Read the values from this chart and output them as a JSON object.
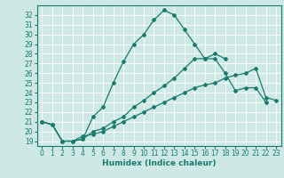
{
  "xlabel": "Humidex (Indice chaleur)",
  "background_color": "#cde8e5",
  "grid_color": "#ffffff",
  "line_color": "#1a7a6e",
  "xlim": [
    -0.5,
    23.5
  ],
  "ylim": [
    18.5,
    33.0
  ],
  "xticks": [
    0,
    1,
    2,
    3,
    4,
    5,
    6,
    7,
    8,
    9,
    10,
    11,
    12,
    13,
    14,
    15,
    16,
    17,
    18,
    19,
    20,
    21,
    22,
    23
  ],
  "yticks": [
    19,
    20,
    21,
    22,
    23,
    24,
    25,
    26,
    27,
    28,
    29,
    30,
    31,
    32
  ],
  "line1_x": [
    0,
    1,
    2,
    3,
    4,
    5,
    6,
    7,
    8,
    9,
    10,
    11,
    12,
    13,
    14,
    15,
    16,
    17,
    18
  ],
  "line1_y": [
    21.0,
    20.7,
    19.0,
    19.0,
    19.2,
    21.5,
    22.5,
    25.0,
    27.2,
    29.0,
    30.0,
    31.5,
    32.5,
    32.0,
    30.5,
    29.0,
    27.5,
    28.0,
    27.5
  ],
  "line2_x": [
    0,
    1,
    2,
    3,
    4,
    5,
    6,
    7,
    8,
    9,
    10,
    11,
    12,
    13,
    14,
    15,
    16,
    17,
    18,
    19,
    20,
    21,
    22
  ],
  "line2_y": [
    21.0,
    20.7,
    19.0,
    19.0,
    19.2,
    20.0,
    20.3,
    21.0,
    21.5,
    22.5,
    23.2,
    24.0,
    24.7,
    25.5,
    26.5,
    27.5,
    27.5,
    27.5,
    26.0,
    24.2,
    24.5,
    24.5,
    23.0
  ],
  "line3_x": [
    0,
    1,
    2,
    3,
    4,
    5,
    6,
    7,
    8,
    9,
    10,
    11,
    12,
    13,
    14,
    15,
    16,
    17,
    18,
    19,
    20,
    21,
    22,
    23
  ],
  "line3_y": [
    21.0,
    20.7,
    19.0,
    19.0,
    19.5,
    19.7,
    20.0,
    20.5,
    21.0,
    21.5,
    22.0,
    22.5,
    23.0,
    23.5,
    24.0,
    24.5,
    24.8,
    25.0,
    25.5,
    25.8,
    26.0,
    26.5,
    23.5,
    23.2
  ],
  "marker": "D",
  "markersize": 2.0,
  "linewidth": 0.9,
  "fontsize_ticks": 5.5,
  "fontsize_label": 6.5
}
